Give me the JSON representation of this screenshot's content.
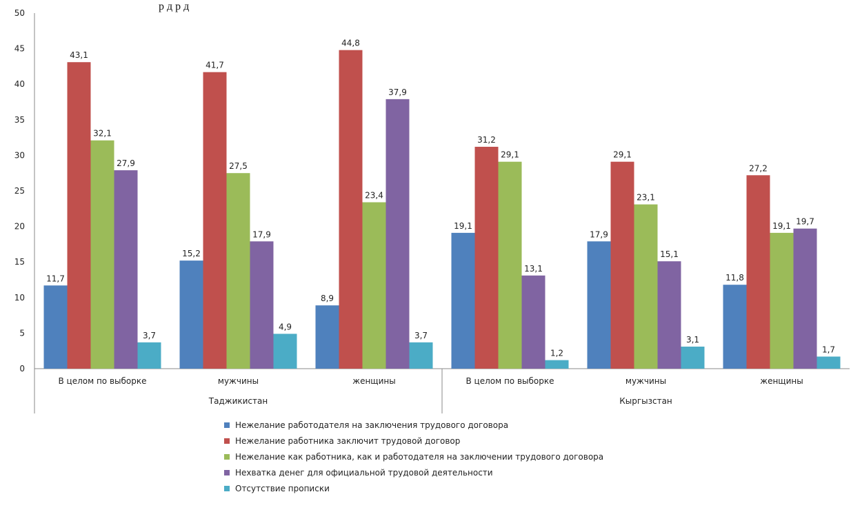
{
  "chart_data": {
    "type": "bar",
    "title": "р                    д р д",
    "xlabel": "",
    "ylabel": "",
    "ylim": [
      0,
      50
    ],
    "yticks": [
      0,
      5,
      10,
      15,
      20,
      25,
      30,
      35,
      40,
      45,
      50
    ],
    "grid": false,
    "legend_position": "bottom",
    "groups": [
      {
        "name": "Таджикистан",
        "categories": [
          "В целом по выборке",
          "мужчины",
          "женщины"
        ]
      },
      {
        "name": "Кыргызстан",
        "categories": [
          "В целом по выборке",
          "мужчины",
          "женщины"
        ]
      }
    ],
    "categories": [
      "В целом по выборке",
      "мужчины",
      "женщины",
      "В целом по выборке",
      "мужчины",
      "женщины"
    ],
    "series": [
      {
        "name": "Нежелание работодателя на заключения трудового договора",
        "color": "#4F81BD",
        "values": [
          11.7,
          15.2,
          8.9,
          19.1,
          17.9,
          11.8
        ],
        "labels": [
          "11,7",
          "15,2",
          "8,9",
          "19,1",
          "17,9",
          "11,8"
        ]
      },
      {
        "name": "Нежелание работника заключит трудовой договор",
        "color": "#C0504D",
        "values": [
          43.1,
          41.7,
          44.8,
          31.2,
          29.1,
          27.2
        ],
        "labels": [
          "43,1",
          "41,7",
          "44,8",
          "31,2",
          "29,1",
          "27,2"
        ]
      },
      {
        "name": "Нежелание как работника, как и работодателя  на заключении трудового договора",
        "color": "#9BBB59",
        "values": [
          32.1,
          27.5,
          23.4,
          29.1,
          23.1,
          19.1
        ],
        "labels": [
          "32,1",
          "27,5",
          "23,4",
          "29,1",
          "23,1",
          "19,1"
        ]
      },
      {
        "name": "Нехватка денег для официальной трудовой деятельности",
        "color": "#8064A2",
        "values": [
          27.9,
          17.9,
          37.9,
          13.1,
          15.1,
          19.7
        ],
        "labels": [
          "27,9",
          "17,9",
          "37,9",
          "13,1",
          "15,1",
          "19,7"
        ]
      },
      {
        "name": "Отсутствие прописки",
        "color": "#4BACC6",
        "values": [
          3.7,
          4.9,
          3.7,
          1.2,
          3.1,
          1.7
        ],
        "labels": [
          "3,7",
          "4,9",
          "3,7",
          "1,2",
          "3,1",
          "1,7"
        ]
      }
    ]
  }
}
